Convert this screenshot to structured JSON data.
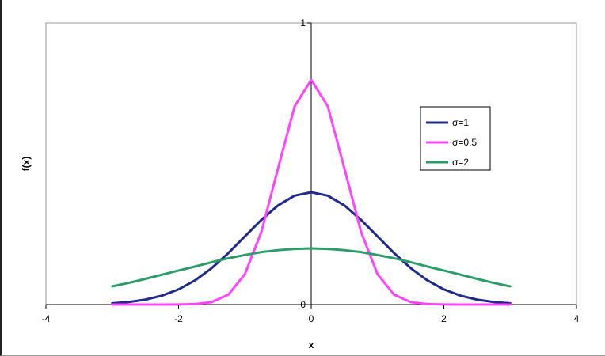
{
  "chart_data": {
    "type": "line",
    "title": "",
    "xlabel": "x",
    "ylabel": "f(x)",
    "xlim": [
      -4,
      4
    ],
    "ylim": [
      0,
      1
    ],
    "x_ticks": [
      "-4",
      "-2",
      "0",
      "2",
      "4"
    ],
    "y_ticks": [
      "0",
      "1"
    ],
    "grid": false,
    "legend_position": "right",
    "x": [
      -3,
      -2.75,
      -2.5,
      -2.25,
      -2,
      -1.75,
      -1.5,
      -1.25,
      -1,
      -0.75,
      -0.5,
      -0.25,
      0,
      0.25,
      0.5,
      0.75,
      1,
      1.25,
      1.5,
      1.75,
      2,
      2.25,
      2.5,
      2.75,
      3
    ],
    "series": [
      {
        "name": "σ=1",
        "color": "#1f2a8a",
        "values": [
          0.0044,
          0.0091,
          0.0175,
          0.0317,
          0.054,
          0.0863,
          0.1295,
          0.1826,
          0.242,
          0.3011,
          0.3521,
          0.3867,
          0.3989,
          0.3867,
          0.3521,
          0.3011,
          0.242,
          0.1826,
          0.1295,
          0.0863,
          0.054,
          0.0317,
          0.0175,
          0.0091,
          0.0044
        ]
      },
      {
        "name": "σ=0.5",
        "color": "#ff44ff",
        "values": [
          0.0,
          0.0,
          0.0,
          0.0,
          0.0003,
          0.0017,
          0.0089,
          0.035,
          0.108,
          0.259,
          0.484,
          0.704,
          0.798,
          0.704,
          0.484,
          0.259,
          0.108,
          0.035,
          0.0089,
          0.0017,
          0.0003,
          0.0,
          0.0,
          0.0,
          0.0
        ]
      },
      {
        "name": "σ=2",
        "color": "#2e9c6a",
        "values": [
          0.0648,
          0.077,
          0.0913,
          0.1063,
          0.121,
          0.1352,
          0.1506,
          0.1645,
          0.176,
          0.1864,
          0.1933,
          0.1977,
          0.1995,
          0.1977,
          0.1933,
          0.1864,
          0.176,
          0.1645,
          0.1506,
          0.1352,
          0.121,
          0.1063,
          0.0913,
          0.077,
          0.0648
        ]
      }
    ]
  }
}
